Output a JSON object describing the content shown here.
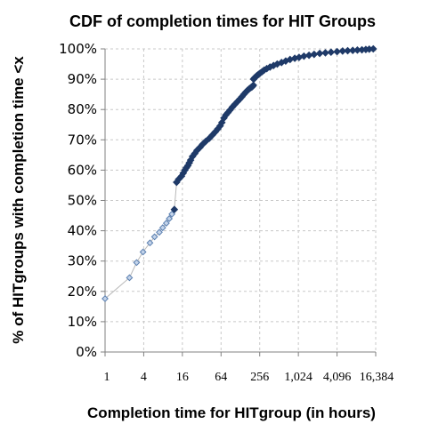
{
  "chart_data": {
    "type": "scatter",
    "title": "CDF of completion times for HIT Groups",
    "xlabel": "Completion time for HITgroup (in hours)",
    "ylabel": "% of HITgroups with completion time <x",
    "x_scale": "log2",
    "xlim": [
      1,
      16384
    ],
    "ylim": [
      0,
      1
    ],
    "x_tick_labels": [
      "1",
      "4",
      "16",
      "64",
      "256",
      "1,024",
      "4,096",
      "16,384"
    ],
    "x_tick_values": [
      1,
      4,
      16,
      64,
      256,
      1024,
      4096,
      16384
    ],
    "y_tick_labels": [
      "0%",
      "10%",
      "20%",
      "30%",
      "40%",
      "50%",
      "60%",
      "70%",
      "80%",
      "90%",
      "100%"
    ],
    "y_tick_values": [
      0,
      0.1,
      0.2,
      0.3,
      0.4,
      0.5,
      0.6,
      0.7,
      0.8,
      0.9,
      1.0
    ],
    "grid": "dashed, both axes",
    "legend": "none",
    "series": [
      {
        "marker": "diamond",
        "color": "#5a7fb0",
        "x": [
          1.0,
          2.4,
          3.1,
          3.9,
          5.0,
          5.9,
          7.0,
          7.9,
          9.0,
          10.0,
          11.0,
          12.0,
          13.0,
          14.0,
          15.5,
          16.5,
          17.5,
          18.5,
          19.5,
          20.5,
          21.5,
          23.0,
          25.0,
          27.0,
          30.0,
          33.0,
          37.0,
          42.0,
          47.0,
          52.0,
          57.0,
          62.0,
          66.0,
          71.0,
          76.0,
          82.0,
          88.0,
          96.0,
          105.0,
          115.0,
          125.0,
          135.0,
          145.0,
          155.0,
          165.0,
          175.0,
          185.0,
          193.0,
          199.0,
          204.0,
          206.0,
          209.0,
          214.0,
          222.0,
          232.0,
          245.0,
          260.0,
          280.0,
          300.0,
          330.0,
          370.0,
          420.0,
          480.0,
          560.0,
          650.0,
          760.0,
          900.0,
          1050.0,
          1250.0,
          1500.0,
          1800.0,
          2200.0,
          2700.0,
          3300.0,
          4100.0,
          5000.0,
          6000.0,
          7200.0,
          8500.0,
          10000.0,
          11500.0,
          13000.0,
          15000.0
        ],
        "y": [
          0.176,
          0.245,
          0.295,
          0.33,
          0.36,
          0.38,
          0.395,
          0.41,
          0.425,
          0.44,
          0.455,
          0.47,
          0.56,
          0.57,
          0.58,
          0.59,
          0.6,
          0.608,
          0.615,
          0.624,
          0.633,
          0.645,
          0.655,
          0.665,
          0.675,
          0.685,
          0.695,
          0.705,
          0.716,
          0.726,
          0.736,
          0.746,
          0.757,
          0.772,
          0.782,
          0.79,
          0.798,
          0.808,
          0.817,
          0.826,
          0.834,
          0.842,
          0.85,
          0.857,
          0.863,
          0.868,
          0.872,
          0.874,
          0.877,
          0.88,
          0.9,
          0.902,
          0.905,
          0.908,
          0.912,
          0.916,
          0.92,
          0.925,
          0.93,
          0.935,
          0.94,
          0.945,
          0.95,
          0.955,
          0.96,
          0.965,
          0.969,
          0.972,
          0.976,
          0.979,
          0.982,
          0.985,
          0.987,
          0.989,
          0.991,
          0.993,
          0.994,
          0.995,
          0.996,
          0.997,
          0.998,
          0.999,
          1.0
        ]
      }
    ]
  }
}
